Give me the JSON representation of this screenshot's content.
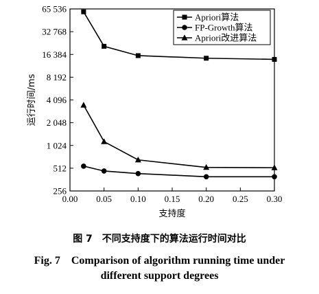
{
  "chart_data": {
    "type": "line",
    "xlabel": "支持度",
    "ylabel": "运行时间/ms",
    "xlim": [
      0.0,
      0.3
    ],
    "ylim": [
      256,
      65536
    ],
    "yscale": "log2",
    "xticks": [
      "0.00",
      "0.05",
      "0.10",
      "0.15",
      "0.20",
      "0.25",
      "0.30"
    ],
    "yticks": [
      "256",
      "512",
      "1 024",
      "2 048",
      "4 096",
      "8 192",
      "16 384",
      "32 768",
      "65 536"
    ],
    "x": [
      0.02,
      0.05,
      0.1,
      0.2,
      0.3
    ],
    "series": [
      {
        "name": "Apriori算法",
        "marker": "square",
        "values": [
          60000,
          21000,
          15800,
          14600,
          14100
        ]
      },
      {
        "name": "FP-Growth算法",
        "marker": "circle",
        "values": [
          545,
          470,
          435,
          395,
          395
        ]
      },
      {
        "name": "Apriori改进算法",
        "marker": "triangle",
        "values": [
          3500,
          1150,
          660,
          525,
          520
        ]
      }
    ],
    "legend": "top-right",
    "grid": false
  },
  "caption": {
    "cn": "图 7　不同支持度下的算法运行时间对比",
    "en_line1": "Fig. 7　Comparison of algorithm running time under",
    "en_line2": "different support degrees"
  }
}
